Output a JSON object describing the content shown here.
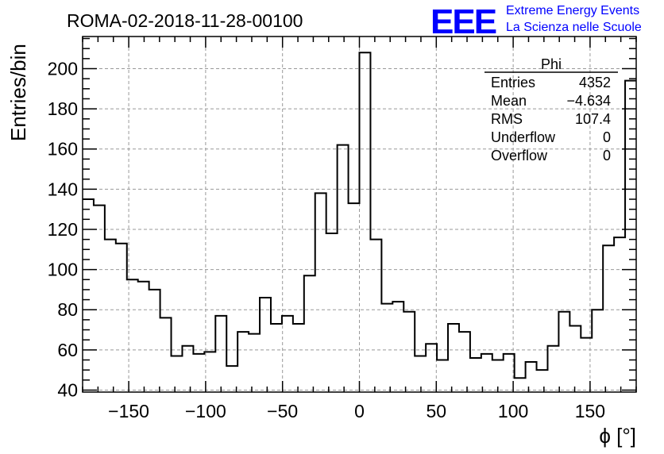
{
  "header": {
    "run_title": "ROMA-02-2018-11-28-00100",
    "logo_text": "EEE",
    "logo_line1": "Extreme Energy Events",
    "logo_line2": "La Scienza nelle Scuole",
    "logo_color": "#0000ff"
  },
  "stats_box": {
    "name": "Phi",
    "rows": [
      {
        "label": "Entries",
        "value": "4352"
      },
      {
        "label": "Mean",
        "value": "−4.634"
      },
      {
        "label": "RMS",
        "value": "107.4"
      },
      {
        "label": "Underflow",
        "value": "0"
      },
      {
        "label": "Overflow",
        "value": "0"
      }
    ]
  },
  "chart_data": {
    "type": "histogram",
    "title": "ROMA-02-2018-11-28-00100",
    "xlabel": "ϕ [°]",
    "ylabel": "Entries/bin",
    "xlim": [
      -180,
      180
    ],
    "ylim": [
      39,
      216
    ],
    "bin_width": 7.2,
    "bin_start": -180,
    "x_ticks": [
      -150,
      -100,
      -50,
      0,
      50,
      100,
      150
    ],
    "y_ticks": [
      40,
      60,
      80,
      100,
      120,
      140,
      160,
      180,
      200
    ],
    "grid": true,
    "values": [
      135,
      132,
      115,
      113,
      95,
      94,
      90,
      76,
      57,
      62,
      58,
      59,
      77,
      52,
      69,
      68,
      86,
      73,
      77,
      73,
      97,
      138,
      118,
      162,
      133,
      208,
      115,
      83,
      84,
      79,
      57,
      63,
      55,
      73,
      69,
      56,
      58,
      55,
      58,
      46,
      54,
      50,
      62,
      79,
      72,
      66,
      80,
      112,
      116,
      194
    ]
  }
}
